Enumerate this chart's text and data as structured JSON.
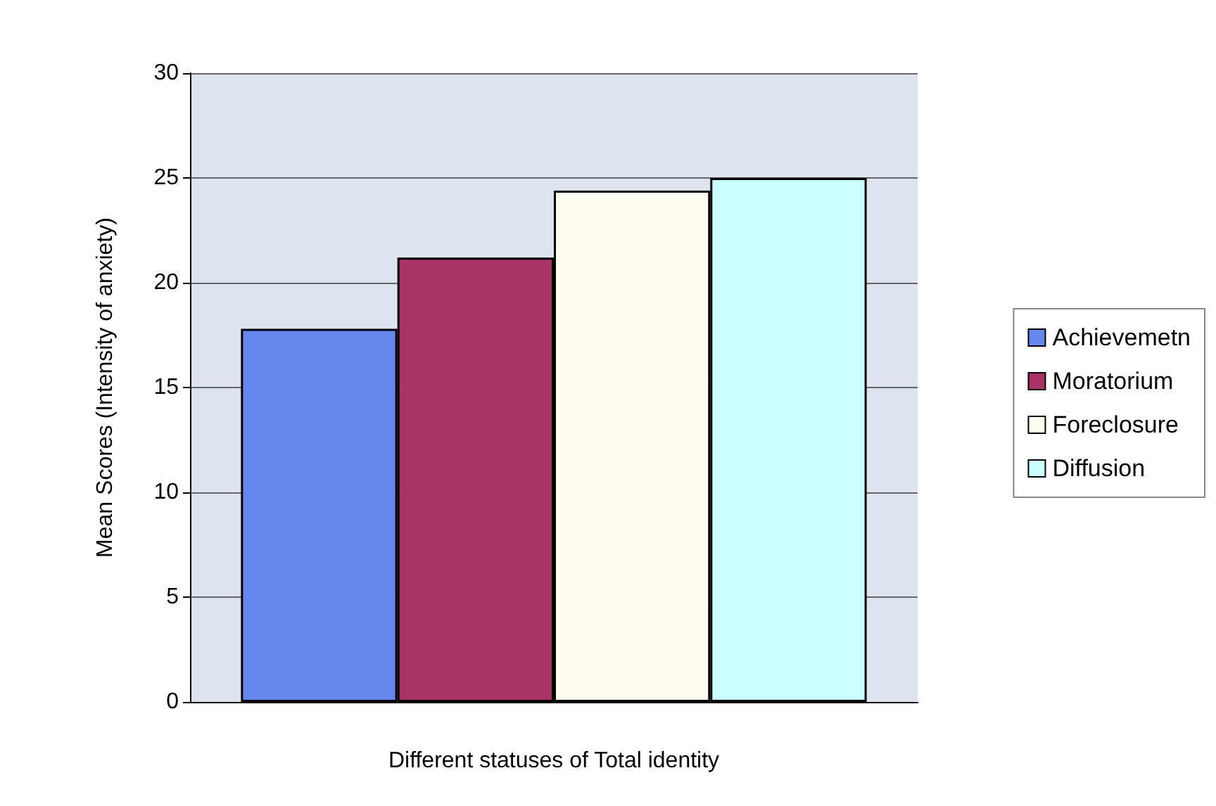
{
  "chart_data": {
    "type": "bar",
    "xlabel": "Different statuses of Total identity",
    "ylabel": "Mean Scores (Intensity of anxiety)",
    "categories": [
      null
    ],
    "series": [
      {
        "name": "Achievemetn",
        "color": "#6688ee",
        "values": [
          17.8
        ]
      },
      {
        "name": "Moratorium",
        "color": "#aa3366",
        "values": [
          21.2
        ]
      },
      {
        "name": "Foreclosure",
        "color": "#fffdf0",
        "values": [
          24.4
        ]
      },
      {
        "name": "Diffusion",
        "color": "#ccffff",
        "values": [
          25.0
        ]
      }
    ],
    "ylim": [
      0,
      30
    ],
    "yticks": [
      0,
      5,
      10,
      15,
      20,
      25,
      30
    ],
    "grid": "y",
    "legend": "right"
  }
}
